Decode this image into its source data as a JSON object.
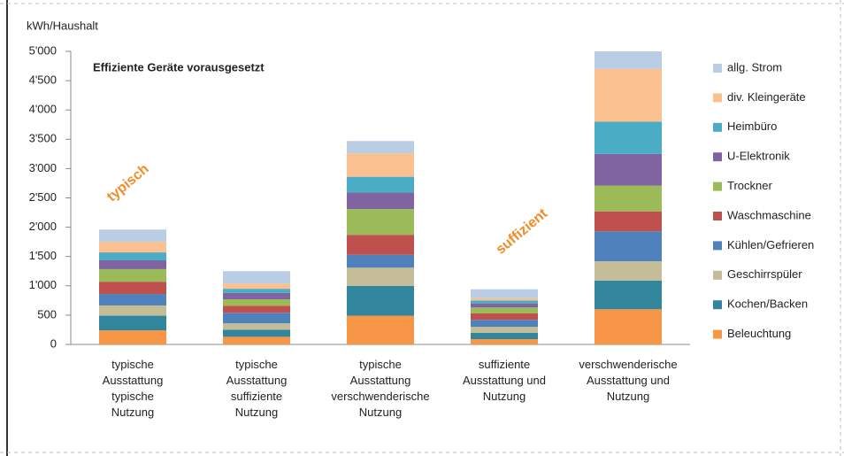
{
  "chart_data": {
    "type": "stacked_bar",
    "y_axis_label": "kWh/Haushalt",
    "annotations": [
      "Effiziente Geräte vorausgesetzt",
      "typisch",
      "suffizient"
    ],
    "categories": [
      "typische\nAusstattung\ntypische\nNutzung",
      "typische\nAusstattung\nsuffiziente\nNutzung",
      "typische\nAusstattung\nverschwenderische\nNutzung",
      "suffiziente\nAusstattung und\nNutzung",
      "verschwenderische\nAusstattung und\nNutzung"
    ],
    "series": [
      {
        "name": "Beleuchtung",
        "color": "#f79646",
        "values": [
          240,
          130,
          490,
          90,
          600
        ]
      },
      {
        "name": "Kochen/Backen",
        "color": "#31859c",
        "values": [
          250,
          120,
          510,
          110,
          490
        ]
      },
      {
        "name": "Geschirrspüler",
        "color": "#c4bd97",
        "values": [
          175,
          110,
          310,
          100,
          330
        ]
      },
      {
        "name": "Kühlen/Gefrieren",
        "color": "#4f81bd",
        "values": [
          195,
          180,
          220,
          120,
          510
        ]
      },
      {
        "name": "Waschmaschine",
        "color": "#c0504d",
        "values": [
          210,
          120,
          340,
          110,
          340
        ]
      },
      {
        "name": "Trockner",
        "color": "#9bbb59",
        "values": [
          215,
          110,
          440,
          100,
          440
        ]
      },
      {
        "name": "U-Elektronik",
        "color": "#8064a2",
        "values": [
          150,
          110,
          280,
          70,
          540
        ]
      },
      {
        "name": "Heimbüro",
        "color": "#4bacc6",
        "values": [
          135,
          70,
          270,
          50,
          550
        ]
      },
      {
        "name": "div. Kleingeräte",
        "color": "#fac090",
        "values": [
          180,
          90,
          400,
          40,
          900
        ]
      },
      {
        "name": "allg. Strom",
        "color": "#b9cde5",
        "values": [
          210,
          210,
          210,
          150,
          300
        ]
      }
    ],
    "ylim": [
      0,
      5000
    ],
    "yticks": [
      0,
      500,
      {
        "value": 1000,
        "label": "1'000"
      },
      {
        "value": 1500,
        "label": "1'500"
      },
      {
        "value": 2000,
        "label": "2'000"
      },
      {
        "value": 2500,
        "label": "2'500"
      },
      {
        "value": 3000,
        "label": "3'000"
      },
      {
        "value": 3500,
        "label": "3'500"
      },
      {
        "value": 4000,
        "label": "4'000"
      },
      {
        "value": 4500,
        "label": "4'500"
      },
      {
        "value": 5000,
        "label": "5'000"
      }
    ],
    "legend": "right"
  }
}
